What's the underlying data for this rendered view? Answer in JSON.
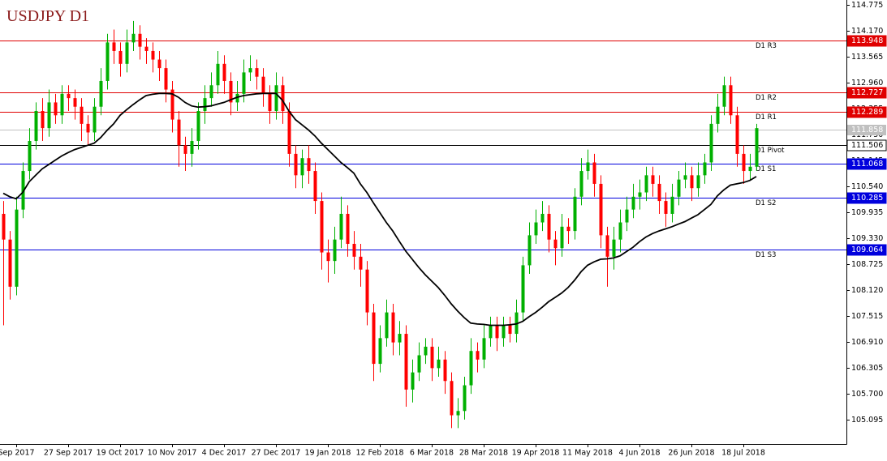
{
  "chart_data": {
    "type": "candlestick",
    "title": "USDJPY D1",
    "bull_color": "#00b000",
    "bear_color": "#ff0000",
    "categories": [
      null,
      null,
      "Sep 2017",
      null,
      null,
      null,
      null,
      null,
      null,
      null,
      "27 Sep 2017",
      null,
      null,
      null,
      null,
      null,
      null,
      null,
      "19 Oct 2017",
      null,
      null,
      null,
      null,
      null,
      null,
      null,
      "10 Nov 2017",
      null,
      null,
      null,
      null,
      null,
      null,
      null,
      "4 Dec 2017",
      null,
      null,
      null,
      null,
      null,
      null,
      null,
      "27 Dec 2017",
      null,
      null,
      null,
      null,
      null,
      null,
      null,
      "19 Jan 2018",
      null,
      null,
      null,
      null,
      null,
      null,
      null,
      "12 Feb 2018",
      null,
      null,
      null,
      null,
      null,
      null,
      null,
      "6 Mar 2018",
      null,
      null,
      null,
      null,
      null,
      null,
      null,
      "28 Mar 2018",
      null,
      null,
      null,
      null,
      null,
      null,
      null,
      "19 Apr 2018",
      null,
      null,
      null,
      null,
      null,
      null,
      null,
      "11 May 2018",
      null,
      null,
      null,
      null,
      null,
      null,
      null,
      "4 Jun 2018",
      null,
      null,
      null,
      null,
      null,
      null,
      null,
      "26 Jun 2018",
      null,
      null,
      null,
      null,
      null,
      null,
      null,
      "18 Jul 2018",
      null,
      null
    ],
    "open": [
      109.9,
      109.3,
      108.2,
      110.0,
      110.9,
      111.6,
      112.3,
      111.9,
      112.5,
      112.2,
      112.7,
      112.6,
      112.4,
      112.0,
      111.8,
      112.4,
      113.0,
      113.9,
      113.7,
      113.4,
      113.9,
      114.1,
      113.8,
      113.7,
      113.5,
      113.3,
      112.8,
      112.1,
      111.5,
      111.3,
      111.6,
      112.3,
      112.6,
      112.9,
      113.4,
      113.0,
      112.5,
      112.7,
      113.2,
      113.3,
      113.1,
      112.7,
      112.3,
      112.9,
      112.3,
      111.3,
      110.8,
      111.2,
      110.9,
      110.2,
      109.0,
      108.8,
      109.3,
      109.9,
      109.2,
      108.9,
      108.6,
      107.6,
      106.4,
      107.0,
      107.6,
      106.9,
      107.1,
      105.8,
      106.2,
      106.6,
      106.8,
      106.3,
      106.5,
      106.0,
      105.2,
      105.3,
      105.9,
      106.7,
      106.5,
      107.0,
      107.3,
      107.0,
      107.3,
      107.1,
      107.6,
      108.7,
      109.4,
      109.7,
      109.9,
      109.3,
      109.1,
      109.6,
      109.5,
      110.3,
      110.9,
      111.1,
      110.6,
      109.4,
      108.9,
      109.3,
      109.7,
      110.0,
      110.3,
      110.4,
      110.8,
      110.6,
      110.2,
      109.9,
      110.3,
      110.7,
      110.8,
      110.5,
      110.8,
      111.1,
      112.0,
      112.4,
      112.9,
      112.2,
      111.3,
      110.9,
      111.0
    ],
    "high": [
      110.2,
      109.5,
      110.3,
      111.1,
      111.9,
      112.5,
      112.6,
      112.8,
      112.7,
      112.9,
      112.9,
      112.8,
      112.6,
      112.2,
      112.6,
      113.3,
      114.1,
      114.2,
      113.9,
      114.2,
      114.4,
      114.3,
      114.0,
      113.9,
      113.7,
      113.5,
      113.0,
      112.3,
      111.7,
      111.9,
      112.5,
      112.9,
      113.2,
      113.7,
      113.6,
      113.2,
      113.0,
      113.5,
      113.6,
      113.5,
      113.3,
      112.9,
      113.2,
      113.1,
      112.5,
      111.5,
      111.4,
      111.5,
      111.1,
      110.4,
      109.3,
      109.6,
      110.3,
      110.1,
      109.5,
      109.2,
      108.8,
      107.8,
      107.3,
      107.9,
      107.8,
      107.4,
      107.3,
      106.5,
      106.9,
      107.0,
      107.0,
      106.8,
      106.7,
      106.2,
      105.6,
      106.1,
      107.0,
      106.9,
      107.3,
      107.5,
      107.5,
      107.5,
      107.5,
      107.9,
      108.9,
      109.7,
      110.0,
      110.2,
      110.1,
      109.5,
      109.9,
      109.8,
      110.5,
      111.2,
      111.4,
      111.3,
      110.8,
      109.6,
      109.6,
      110.0,
      110.3,
      110.6,
      110.7,
      111.0,
      111.0,
      110.8,
      110.4,
      110.6,
      110.9,
      111.1,
      111.0,
      111.1,
      111.3,
      112.2,
      112.7,
      113.1,
      113.1,
      112.4,
      111.5,
      111.3,
      112.0
    ],
    "low": [
      107.3,
      107.9,
      108.0,
      109.8,
      110.7,
      111.4,
      111.6,
      111.7,
      112.0,
      112.0,
      112.3,
      112.1,
      111.6,
      111.5,
      111.6,
      112.2,
      112.8,
      113.4,
      113.1,
      113.2,
      113.7,
      113.5,
      113.4,
      113.2,
      113.0,
      112.5,
      111.8,
      111.0,
      110.9,
      111.0,
      111.4,
      112.0,
      112.4,
      112.7,
      112.7,
      112.2,
      112.3,
      112.5,
      113.0,
      112.8,
      112.4,
      112.0,
      112.1,
      112.0,
      111.0,
      110.5,
      110.5,
      110.6,
      109.9,
      108.6,
      108.3,
      108.5,
      109.1,
      108.9,
      108.6,
      108.2,
      107.3,
      106.0,
      106.2,
      106.8,
      106.6,
      106.6,
      105.4,
      105.5,
      106.0,
      106.4,
      106.0,
      106.1,
      105.7,
      104.9,
      104.9,
      105.1,
      105.7,
      106.2,
      106.3,
      106.8,
      106.7,
      106.8,
      106.9,
      106.9,
      107.4,
      108.5,
      109.2,
      109.5,
      109.0,
      108.7,
      108.9,
      109.2,
      109.3,
      110.1,
      110.7,
      110.3,
      109.1,
      108.2,
      108.6,
      109.0,
      109.5,
      109.8,
      110.0,
      110.2,
      110.3,
      109.9,
      109.6,
      109.7,
      110.1,
      110.5,
      110.2,
      110.3,
      110.6,
      110.9,
      111.8,
      112.2,
      112.0,
      111.0,
      110.6,
      110.7,
      110.9
    ],
    "close": [
      109.3,
      108.2,
      110.0,
      110.9,
      111.6,
      112.3,
      111.9,
      112.5,
      112.2,
      112.7,
      112.6,
      112.4,
      112.0,
      111.8,
      112.4,
      113.0,
      113.9,
      113.7,
      113.4,
      113.9,
      114.1,
      113.8,
      113.7,
      113.5,
      113.3,
      112.8,
      112.1,
      111.5,
      111.3,
      111.6,
      112.3,
      112.6,
      112.9,
      113.4,
      113.0,
      112.5,
      112.7,
      113.2,
      113.3,
      113.1,
      112.7,
      112.3,
      112.9,
      112.3,
      111.3,
      110.8,
      111.2,
      110.9,
      110.2,
      109.0,
      108.8,
      109.3,
      109.9,
      109.2,
      108.9,
      108.6,
      107.6,
      106.4,
      107.0,
      107.6,
      106.9,
      107.1,
      105.8,
      106.2,
      106.6,
      106.8,
      106.3,
      106.5,
      106.0,
      105.2,
      105.3,
      105.9,
      106.7,
      106.5,
      107.0,
      107.3,
      107.0,
      107.3,
      107.1,
      107.6,
      108.7,
      109.4,
      109.7,
      109.9,
      109.3,
      109.1,
      109.6,
      109.5,
      110.3,
      110.9,
      111.1,
      110.6,
      109.4,
      108.9,
      109.3,
      109.7,
      110.0,
      110.3,
      110.4,
      110.8,
      110.6,
      110.2,
      109.9,
      110.3,
      110.7,
      110.8,
      110.5,
      110.8,
      111.1,
      112.0,
      112.4,
      112.9,
      112.2,
      111.3,
      110.9,
      111.0,
      111.9
    ],
    "ma": {
      "color": "#000000",
      "values": [
        110.38,
        110.3,
        110.25,
        110.4,
        110.65,
        110.8,
        110.95,
        111.05,
        111.15,
        111.25,
        111.33,
        111.4,
        111.45,
        111.5,
        111.55,
        111.68,
        111.85,
        112.0,
        112.2,
        112.33,
        112.45,
        112.56,
        112.66,
        112.69,
        112.71,
        112.71,
        112.7,
        112.62,
        112.5,
        112.42,
        112.39,
        112.4,
        112.42,
        112.46,
        112.5,
        112.56,
        112.62,
        112.66,
        112.68,
        112.7,
        112.71,
        112.71,
        112.71,
        112.55,
        112.3,
        112.1,
        111.98,
        111.86,
        111.72,
        111.55,
        111.4,
        111.25,
        111.1,
        110.98,
        110.85,
        110.6,
        110.4,
        110.16,
        109.93,
        109.7,
        109.5,
        109.26,
        109.03,
        108.84,
        108.65,
        108.48,
        108.33,
        108.18,
        108.0,
        107.8,
        107.63,
        107.48,
        107.35,
        107.33,
        107.32,
        107.3,
        107.3,
        107.3,
        107.31,
        107.33,
        107.39,
        107.5,
        107.6,
        107.72,
        107.85,
        107.95,
        108.05,
        108.18,
        108.35,
        108.55,
        108.7,
        108.78,
        108.84,
        108.85,
        108.87,
        108.92,
        109.02,
        109.12,
        109.25,
        109.36,
        109.44,
        109.5,
        109.55,
        109.6,
        109.66,
        109.72,
        109.8,
        109.88,
        110.0,
        110.12,
        110.32,
        110.46,
        110.57,
        110.6,
        110.63,
        110.68,
        110.77
      ]
    },
    "levels": [
      {
        "name": "D1 R3",
        "value": 113.948,
        "color": "#e00000"
      },
      {
        "name": "D1 R2",
        "value": 112.727,
        "color": "#e00000"
      },
      {
        "name": "D1 R1",
        "value": 112.289,
        "color": "#e00000"
      },
      {
        "name": "D1 Pivot",
        "value": 111.506,
        "color": "#000000"
      },
      {
        "name": "D1 S1",
        "value": 111.068,
        "color": "#0000dd"
      },
      {
        "name": "D1 S2",
        "value": 110.285,
        "color": "#0000dd"
      },
      {
        "name": "D1 S3",
        "value": 109.064,
        "color": "#0000dd"
      }
    ],
    "last_price": {
      "value": 111.858,
      "color": "#c0c0c0"
    },
    "ylim": [
      104.53,
      114.89
    ],
    "yticks": [
      114.775,
      {
        "value": 114.17,
        "label": "114.170"
      },
      113.565,
      {
        "value": 112.96,
        "label": "112.960"
      },
      112.355,
      {
        "value": 111.75,
        "label": "111.750"
      },
      111.145,
      {
        "value": 110.54,
        "label": "110.540"
      },
      109.935,
      {
        "value": 109.33,
        "label": "109.330"
      },
      108.725,
      {
        "value": 108.12,
        "label": "108.120"
      },
      107.515,
      {
        "value": 106.91,
        "label": "106.910"
      },
      106.305,
      {
        "value": 105.7,
        "label": "105.700"
      },
      105.095
    ]
  }
}
